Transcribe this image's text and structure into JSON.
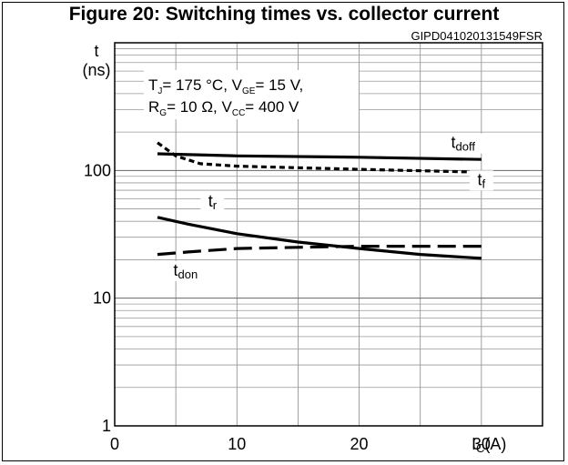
{
  "figure": {
    "title": "Figure 20: Switching times vs. collector current",
    "code": "GIPD041020131549FSR"
  },
  "conditions": {
    "line1": {
      "a": "T",
      "a_sub": "J",
      "b": "= 175 °C, V",
      "b_sub": "GE",
      "c": "= 15 V,"
    },
    "line2": {
      "a": "R",
      "a_sub": "G",
      "b": "= 10 Ω, V",
      "b_sub": "CC",
      "c": "= 400 V"
    }
  },
  "chart_data": {
    "type": "line",
    "title": "Figure 20: Switching times vs. collector current",
    "xlabel": "IC(A)",
    "xlabel_parts": {
      "main": "I",
      "sub": "C",
      "unit": "(A)"
    },
    "ylabel": "t (ns)",
    "ylabel_parts": {
      "symbol": "t",
      "unit": "(ns)"
    },
    "xlim": [
      0,
      35
    ],
    "ylim": [
      1,
      1000
    ],
    "yscale": "log",
    "grid": true,
    "x_ticks": [
      0,
      10,
      20,
      30
    ],
    "y_ticks": [
      {
        "value": 1,
        "label": "1"
      },
      {
        "value": 10,
        "label": "10"
      },
      {
        "value": 100,
        "label": "100"
      }
    ],
    "series": [
      {
        "name": "tdoff",
        "label_main": "t",
        "label_sub": "doff",
        "style": "solid",
        "x": [
          3.5,
          10,
          20,
          30
        ],
        "y": [
          135,
          130,
          127,
          122
        ]
      },
      {
        "name": "tf",
        "label_main": "t",
        "label_sub": "f",
        "style": "dotted",
        "x": [
          3.5,
          5,
          7,
          10,
          20,
          30
        ],
        "y": [
          165,
          130,
          113,
          108,
          102,
          97
        ]
      },
      {
        "name": "tr",
        "label_main": "t",
        "label_sub": "r",
        "style": "solid",
        "x": [
          3.5,
          6,
          10,
          15,
          20,
          25,
          30
        ],
        "y": [
          43,
          38,
          32,
          27.5,
          24.5,
          22,
          20.5
        ]
      },
      {
        "name": "tdon",
        "label_main": "t",
        "label_sub": "don",
        "style": "dashed",
        "x": [
          3.5,
          6,
          10,
          15,
          20,
          30
        ],
        "y": [
          22,
          23,
          24.5,
          25,
          25.5,
          25.5
        ]
      }
    ]
  }
}
